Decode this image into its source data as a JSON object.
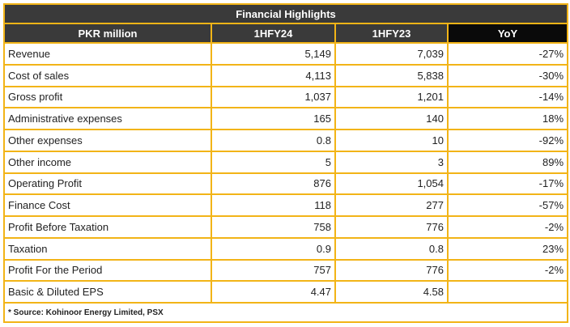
{
  "title": "Financial Highlights",
  "columns": [
    "PKR million",
    "1HFY24",
    "1HFY23",
    "YoY"
  ],
  "rows": [
    {
      "label": "Revenue",
      "fy24": "5,149",
      "fy23": "7,039",
      "yoy": "-27%"
    },
    {
      "label": "Cost of sales",
      "fy24": "4,113",
      "fy23": "5,838",
      "yoy": "-30%"
    },
    {
      "label": "Gross profit",
      "fy24": "1,037",
      "fy23": "1,201",
      "yoy": "-14%"
    },
    {
      "label": "Administrative expenses",
      "fy24": "165",
      "fy23": "140",
      "yoy": "18%"
    },
    {
      "label": "Other expenses",
      "fy24": "0.8",
      "fy23": "10",
      "yoy": "-92%"
    },
    {
      "label": "Other income",
      "fy24": "5",
      "fy23": "3",
      "yoy": "89%"
    },
    {
      "label": "Operating Profit",
      "fy24": "876",
      "fy23": "1,054",
      "yoy": "-17%"
    },
    {
      "label": "Finance Cost",
      "fy24": "118",
      "fy23": "277",
      "yoy": "-57%"
    },
    {
      "label": "Profit Before Taxation",
      "fy24": "758",
      "fy23": "776",
      "yoy": "-2%"
    },
    {
      "label": "Taxation",
      "fy24": "0.9",
      "fy23": "0.8",
      "yoy": "23%"
    },
    {
      "label": "Profit For the Period",
      "fy24": "757",
      "fy23": "776",
      "yoy": "-2%"
    },
    {
      "label": "Basic & Diluted EPS",
      "fy24": "4.47",
      "fy23": "4.58",
      "yoy": ""
    }
  ],
  "source": "* Source: Kohinoor Energy Limited, PSX",
  "colors": {
    "border": "#f2b417",
    "header_bg": "#3a3a3a",
    "yoy_header_bg": "#0a0a0a"
  }
}
